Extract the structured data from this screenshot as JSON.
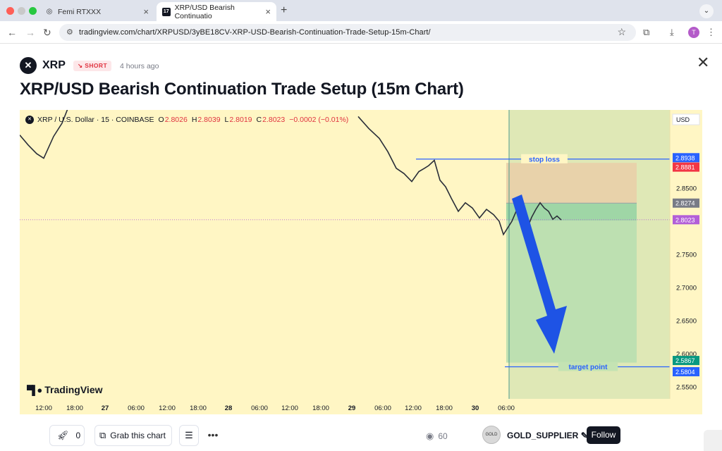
{
  "browser": {
    "tabs": [
      {
        "label": "Femi RTXXX",
        "active": false,
        "icon": "github-icon"
      },
      {
        "label": "XRP/USD Bearish Continuatio",
        "active": true,
        "icon": "tradingview-icon"
      }
    ],
    "url": "tradingview.com/chart/XRPUSD/3yBE18CV-XRP-USD-Bearish-Continuation-Trade-Setup-15m-Chart/",
    "profile_initial": "T"
  },
  "idea": {
    "symbol": "XRP",
    "direction": "SHORT",
    "posted": "4 hours ago",
    "title": "XRP/USD Bearish Continuation Trade Setup (15m Chart)"
  },
  "chart_legend": {
    "instrument": "XRP / U.S. Dollar · 15 · COINBASE",
    "o_key": "O",
    "o": "2.8026",
    "h_key": "H",
    "h": "2.8039",
    "l_key": "L",
    "l": "2.8019",
    "c_key": "C",
    "c": "2.8023",
    "change": "−0.0002 (−0.01%)"
  },
  "chart_data": {
    "type": "line",
    "x_ticks": [
      "12:00",
      "18:00",
      "27",
      "06:00",
      "12:00",
      "18:00",
      "28",
      "06:00",
      "12:00",
      "18:00",
      "29",
      "06:00",
      "12:00",
      "18:00",
      "30",
      "06:00"
    ],
    "y_ticks": [
      "2.8500",
      "2.7500",
      "2.7000",
      "2.6500",
      "2.6000",
      "2.5500"
    ],
    "y_tick_values": [
      2.85,
      2.75,
      2.7,
      2.65,
      2.6,
      2.55
    ],
    "ylim": [
      2.532,
      2.968
    ],
    "price_labels": [
      {
        "text": "USD",
        "kind": "unit"
      },
      {
        "text": "2.8938",
        "value": 2.8938,
        "color": "#2962ff"
      },
      {
        "text": "2.8881",
        "value": 2.8881,
        "color": "#f23645"
      },
      {
        "text": "2.8274",
        "value": 2.8274,
        "color": "#787b86"
      },
      {
        "text": "2.8023",
        "value": 2.8023,
        "color": "#b25fd8"
      },
      {
        "text": "2.5867",
        "value": 2.5867,
        "color": "#089981"
      },
      {
        "text": "2.5804",
        "value": 2.5804,
        "color": "#2962ff"
      }
    ],
    "annotations": [
      {
        "text": "stop loss",
        "value": 2.8938
      },
      {
        "text": "target point",
        "value": 2.5804
      }
    ],
    "series": [
      {
        "values": [
          2.93,
          2.915,
          2.902,
          2.895,
          2.928,
          2.948,
          2.975,
          2.958,
          2.94,
          2.925,
          2.905,
          2.88,
          2.872,
          2.86,
          2.875,
          2.88,
          2.884,
          2.892,
          2.862,
          2.852,
          2.835,
          2.815,
          2.828,
          2.82,
          2.805,
          2.818,
          2.81,
          2.8,
          2.78,
          2.79,
          2.8,
          2.815,
          2.81,
          2.795,
          2.79,
          2.806,
          2.818,
          2.828,
          2.82,
          2.815,
          2.803,
          2.808,
          2.802
        ]
      }
    ]
  },
  "branding": {
    "logo_text": "TradingView"
  },
  "footer": {
    "boost_count": "0",
    "grab_label": "Grab this chart",
    "views": "60",
    "author": "GOLD_SUPPLIER",
    "avatar_text": "GOLD",
    "follow_label": "Follow"
  }
}
